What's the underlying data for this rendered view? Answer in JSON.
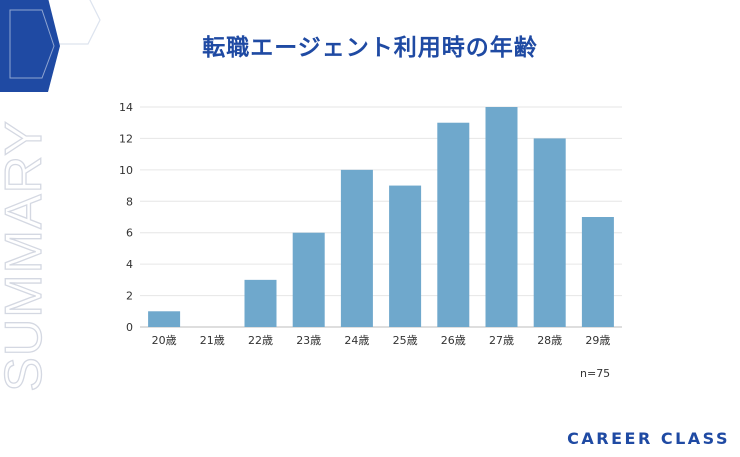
{
  "page": {
    "title": "転職エージェント利用時の年齢",
    "side_word": "SUMMARY",
    "sample_note": "n=75",
    "brand": "CAREER CLASS",
    "colors": {
      "accent": "#1f4aa3",
      "bar": "#6fa8cc",
      "deco_light": "#dde3ee"
    }
  },
  "chart_data": {
    "type": "bar",
    "title": "転職エージェント利用時の年齢",
    "categories": [
      "20歳",
      "21歳",
      "22歳",
      "23歳",
      "24歳",
      "25歳",
      "26歳",
      "27歳",
      "28歳",
      "29歳"
    ],
    "values": [
      1,
      0,
      3,
      6,
      10,
      9,
      13,
      14,
      12,
      7
    ],
    "yticks": [
      0,
      2,
      4,
      6,
      8,
      10,
      12,
      14
    ],
    "ylim": [
      0,
      14
    ],
    "xlabel": "",
    "ylabel": "",
    "grid": true,
    "legend": "none"
  }
}
